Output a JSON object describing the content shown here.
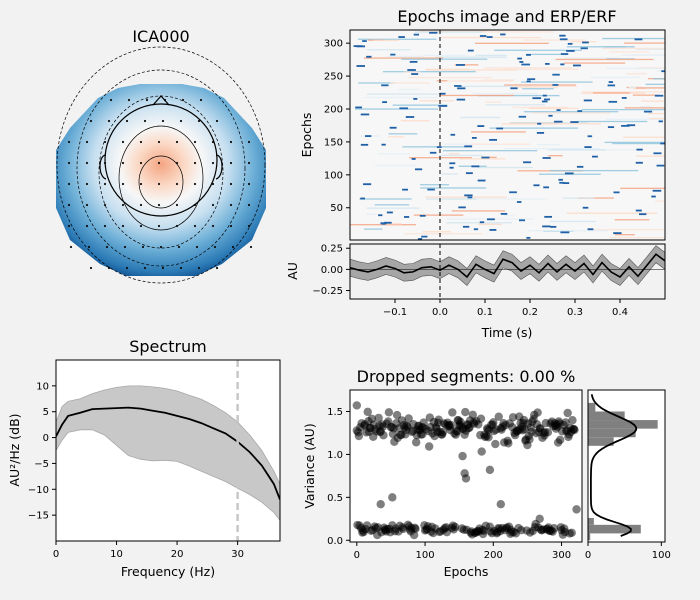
{
  "chart_data": [
    {
      "id": "topomap",
      "type": "heatmap",
      "title": "ICA000",
      "colormap": "RdBu_r"
    },
    {
      "id": "epochs_image",
      "type": "heatmap",
      "title": "Epochs image and ERP/ERF",
      "ylabel": "Epochs",
      "ylim": [
        1,
        320
      ],
      "yticks": [
        50,
        100,
        150,
        200,
        250,
        300
      ],
      "xlim": [
        -0.2,
        0.5
      ],
      "event_line_x": 0.0
    },
    {
      "id": "erp",
      "type": "line",
      "ylabel": "AU",
      "xlabel": "Time (s)",
      "xlim": [
        -0.2,
        0.5
      ],
      "ylim": [
        -0.35,
        0.3
      ],
      "xticks": [
        -0.1,
        0.0,
        0.1,
        0.2,
        0.3,
        0.4
      ],
      "xtick_labels": [
        "−0.1",
        "0.0",
        "0.1",
        "0.2",
        "0.3",
        "0.4"
      ],
      "yticks": [
        0.25,
        0.0,
        -0.25
      ],
      "ytick_labels": [
        "0.25",
        "0.00",
        "−0.25"
      ],
      "x": [
        -0.2,
        -0.18,
        -0.16,
        -0.14,
        -0.12,
        -0.1,
        -0.08,
        -0.06,
        -0.04,
        -0.02,
        0.0,
        0.02,
        0.04,
        0.06,
        0.08,
        0.1,
        0.12,
        0.14,
        0.16,
        0.18,
        0.2,
        0.22,
        0.24,
        0.26,
        0.28,
        0.3,
        0.32,
        0.34,
        0.36,
        0.38,
        0.4,
        0.42,
        0.44,
        0.46,
        0.48,
        0.5
      ],
      "mean": [
        0.02,
        -0.01,
        -0.03,
        0.0,
        0.04,
        0.01,
        -0.04,
        -0.03,
        0.02,
        0.03,
        -0.01,
        0.05,
        0.0,
        -0.09,
        0.06,
        0.0,
        -0.05,
        0.12,
        0.08,
        -0.02,
        0.05,
        -0.04,
        0.07,
        -0.03,
        0.06,
        -0.02,
        0.07,
        -0.06,
        0.08,
        -0.03,
        -0.09,
        0.03,
        -0.08,
        0.05,
        0.18,
        0.1
      ],
      "band_halfwidth": 0.1
    },
    {
      "id": "spectrum",
      "type": "line",
      "title": "Spectrum",
      "xlabel": "Frequency (Hz)",
      "ylabel": "AU²/Hz (dB)",
      "xlim": [
        0,
        37
      ],
      "ylim": [
        -20,
        15
      ],
      "xticks": [
        0,
        10,
        20,
        30
      ],
      "yticks": [
        10,
        5,
        0,
        -5,
        -10,
        -15
      ],
      "ytick_labels": [
        "10",
        "5",
        "0",
        "−5",
        "−10",
        "−15"
      ],
      "x": [
        0,
        1,
        2,
        4,
        6,
        8,
        10,
        12,
        14,
        16,
        18,
        20,
        22,
        24,
        26,
        28,
        30,
        32,
        34,
        36,
        37
      ],
      "mean": [
        0.2,
        2.5,
        4.2,
        4.8,
        5.5,
        5.6,
        5.7,
        5.8,
        5.6,
        5.2,
        4.8,
        4.2,
        3.6,
        2.8,
        1.8,
        0.8,
        -0.8,
        -2.8,
        -5.4,
        -9.0,
        -12.0
      ],
      "upper": [
        3.0,
        6.0,
        7.0,
        7.5,
        8.5,
        9.2,
        9.7,
        10.0,
        10.0,
        9.8,
        9.5,
        9.0,
        8.2,
        7.4,
        6.2,
        4.8,
        3.0,
        0.5,
        -2.5,
        -6.5,
        -9.0
      ],
      "lower": [
        -2.5,
        -0.5,
        1.0,
        1.5,
        1.5,
        0.5,
        -1.5,
        -3.5,
        -4.2,
        -4.5,
        -4.4,
        -4.6,
        -5.5,
        -6.5,
        -7.5,
        -8.5,
        -9.8,
        -11.0,
        -12.5,
        -14.5,
        -16.0
      ],
      "vline_x": 30
    },
    {
      "id": "dropped",
      "type": "scatter",
      "title": "Dropped segments: 0.00 %",
      "xlabel": "Epochs",
      "ylabel": "Variance (AU)",
      "xlim": [
        -10,
        330
      ],
      "ylim": [
        -0.02,
        1.75
      ],
      "xticks": [
        0,
        100,
        200,
        300
      ],
      "yticks": [
        0.0,
        0.5,
        1.0,
        1.5
      ],
      "ytick_labels": [
        "0.0",
        "0.5",
        "1.0",
        "1.5"
      ],
      "n_epochs": 320,
      "clusters": [
        {
          "center": 1.3,
          "spread": 0.14,
          "fraction": 0.62
        },
        {
          "center": 0.12,
          "spread": 0.05,
          "fraction": 0.38
        }
      ],
      "outliers": [
        [
          0,
          1.57
        ],
        [
          35,
          0.42
        ],
        [
          52,
          0.5
        ],
        [
          155,
          0.98
        ],
        [
          158,
          0.78
        ],
        [
          160,
          0.72
        ],
        [
          211,
          0.42
        ],
        [
          195,
          0.82
        ],
        [
          268,
          0.25
        ],
        [
          322,
          0.36
        ]
      ]
    },
    {
      "id": "histogram",
      "type": "bar",
      "xlim": [
        0,
        105
      ],
      "xticks": [
        0,
        100
      ],
      "orientation": "horizontal",
      "bins": [
        {
          "y0": 0.0,
          "y1": 0.08,
          "count": 3
        },
        {
          "y0": 0.08,
          "y1": 0.18,
          "count": 72
        },
        {
          "y0": 0.18,
          "y1": 0.26,
          "count": 8
        },
        {
          "y0": 1.1,
          "y1": 1.2,
          "count": 35
        },
        {
          "y0": 1.2,
          "y1": 1.3,
          "count": 65
        },
        {
          "y0": 1.3,
          "y1": 1.4,
          "count": 95
        },
        {
          "y0": 1.4,
          "y1": 1.5,
          "count": 50
        },
        {
          "y0": 1.5,
          "y1": 1.6,
          "count": 10
        }
      ]
    }
  ]
}
